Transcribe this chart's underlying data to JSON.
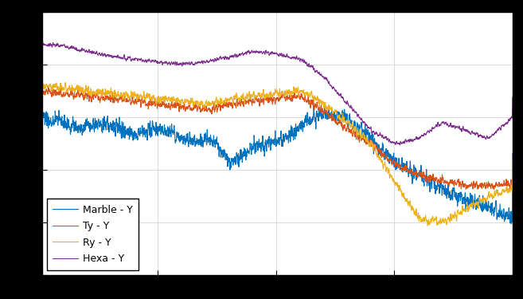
{
  "legend_entries": [
    "Marble - Y",
    "Ty - Y",
    "Ry - Y",
    "Hexa - Y"
  ],
  "colors": [
    "#0072bd",
    "#d95319",
    "#edb120",
    "#7e2f8e"
  ],
  "linewidth": 0.8,
  "background_color": "#ffffff",
  "grid_color": "#cccccc",
  "figsize": [
    6.57,
    3.75
  ],
  "dpi": 100,
  "outer_bg": "#000000"
}
